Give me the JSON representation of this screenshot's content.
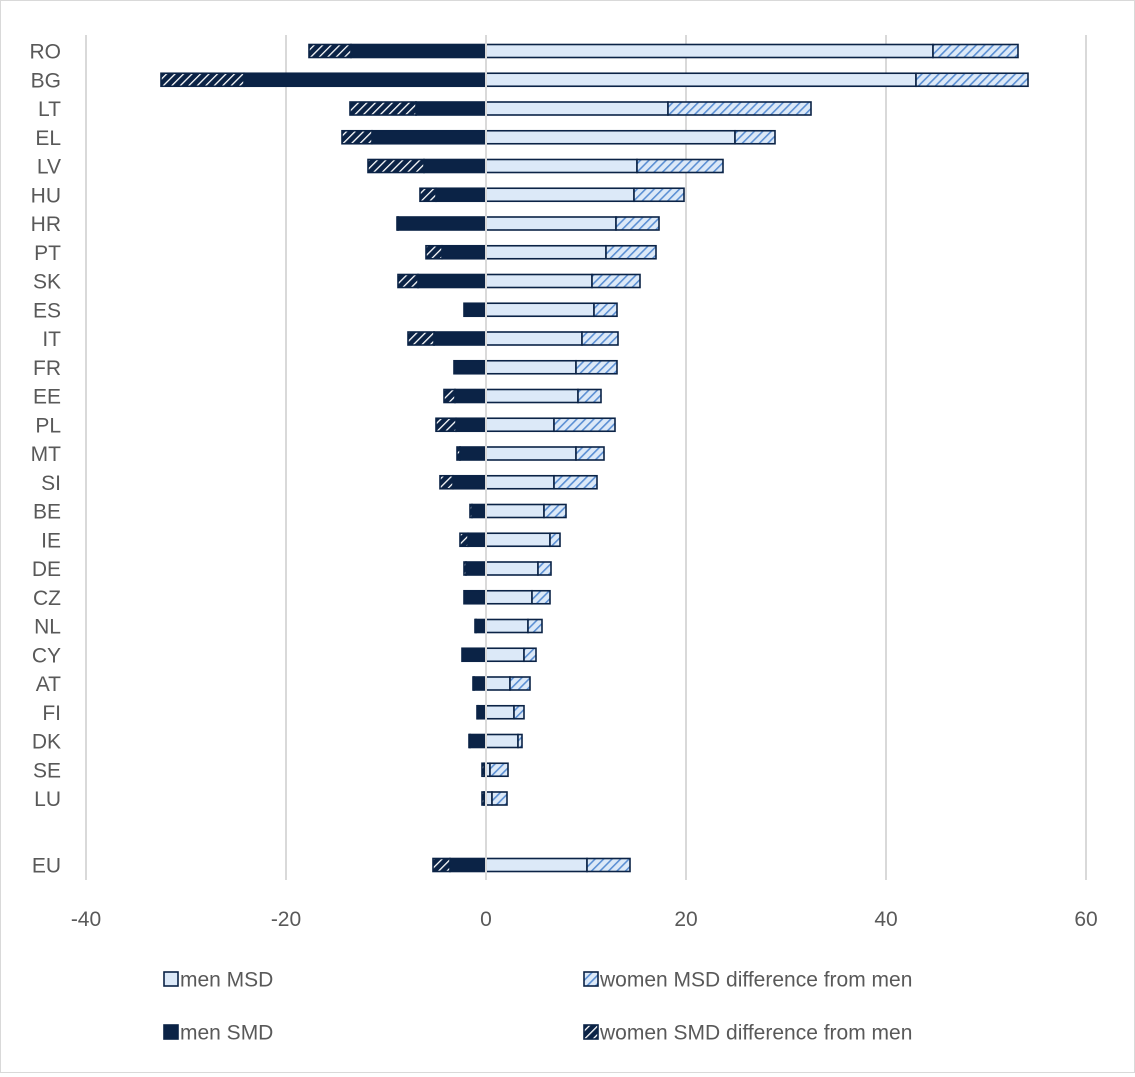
{
  "chart_data": {
    "type": "bar",
    "orientation": "horizontal",
    "stacked": true,
    "categories": [
      "RO",
      "BG",
      "LT",
      "EL",
      "LV",
      "HU",
      "HR",
      "PT",
      "SK",
      "ES",
      "IT",
      "FR",
      "EE",
      "PL",
      "MT",
      "SI",
      "BE",
      "IE",
      "DE",
      "CZ",
      "NL",
      "CY",
      "AT",
      "FI",
      "DK",
      "SE",
      "LU",
      "EU"
    ],
    "series": [
      {
        "name": "men MSD",
        "pattern": "solid-light",
        "values": [
          44.7,
          43.0,
          18.2,
          24.9,
          15.1,
          14.8,
          13.0,
          12.0,
          10.6,
          10.8,
          9.6,
          9.0,
          9.2,
          6.8,
          9.0,
          6.8,
          5.8,
          6.4,
          5.2,
          4.6,
          4.2,
          3.8,
          2.4,
          2.8,
          3.2,
          0.4,
          0.6,
          10.1
        ]
      },
      {
        "name": "women MSD difference from men",
        "pattern": "hatch-light",
        "values": [
          8.5,
          11.2,
          14.3,
          4.0,
          8.6,
          5.0,
          4.3,
          5.0,
          4.8,
          2.3,
          3.6,
          4.1,
          2.3,
          6.1,
          2.8,
          4.3,
          2.2,
          1.0,
          1.3,
          1.8,
          1.4,
          1.2,
          2.0,
          1.0,
          0.4,
          1.8,
          1.5,
          4.3
        ]
      },
      {
        "name": "men SMD",
        "pattern": "solid-dark",
        "values": [
          -13.5,
          -24.2,
          -7.0,
          -11.4,
          -6.2,
          -5.0,
          -8.8,
          -4.4,
          -6.8,
          -2.2,
          -5.2,
          -3.2,
          -3.1,
          -3.0,
          -2.6,
          -3.3,
          -1.4,
          -1.8,
          -2.0,
          -2.2,
          -1.0,
          -2.4,
          -1.2,
          -0.8,
          -1.6,
          -0.2,
          -0.2,
          -3.6
        ]
      },
      {
        "name": "women SMD difference from men",
        "pattern": "hatch-dark",
        "values": [
          -4.2,
          -8.3,
          -6.6,
          -3.0,
          -5.6,
          -1.6,
          -0.1,
          -1.6,
          -2.0,
          0,
          -2.6,
          0,
          -1.1,
          -2.0,
          -0.3,
          -1.3,
          -0.2,
          -0.8,
          -0.2,
          0,
          -0.1,
          0,
          -0.1,
          -0.1,
          -0.1,
          -0.2,
          -0.2,
          -1.7
        ]
      }
    ],
    "xlim": [
      -40,
      60
    ],
    "xticks": [
      "-40",
      "-20",
      "0",
      "20",
      "40",
      "60"
    ],
    "grid": true,
    "legend_position": "bottom"
  },
  "colors": {
    "dark": "#0b2346",
    "light": "#dce9f8",
    "hatch": "#5b8fd3",
    "grid": "#d9d9d9",
    "text": "#595959"
  }
}
